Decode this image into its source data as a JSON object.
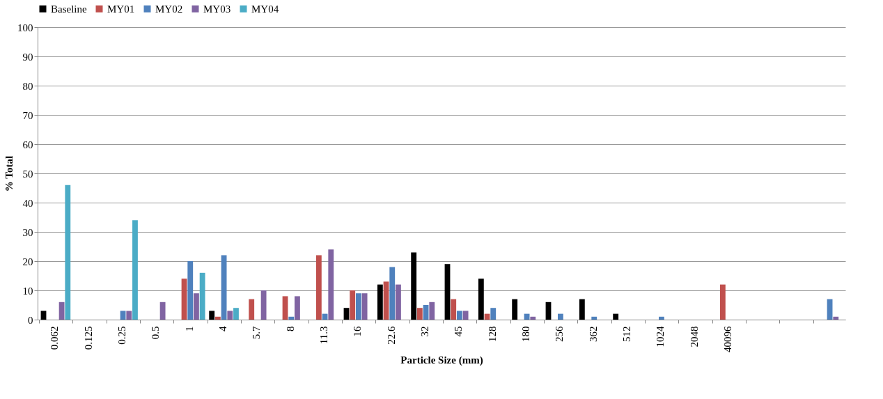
{
  "chart_data": {
    "type": "bar",
    "xlabel": "Particle Size (mm)",
    "ylabel": "% Total",
    "categories": [
      "0.062",
      "0.125",
      "0.25",
      "0.5",
      "1",
      "4",
      "5.7",
      "8",
      "11.3",
      "16",
      "22.6",
      "32",
      "45",
      "128",
      "180",
      "256",
      "362",
      "512",
      "1024",
      "2048",
      "40096",
      null,
      null,
      null
    ],
    "series": [
      {
        "name": "Baseline",
        "color": "#000000",
        "values": [
          3,
          null,
          null,
          null,
          null,
          3,
          null,
          null,
          null,
          4,
          12,
          23,
          19,
          14,
          7,
          6,
          7,
          2,
          null,
          null,
          null,
          null,
          null,
          null
        ]
      },
      {
        "name": "MY01",
        "color": "#c0504d",
        "values": [
          null,
          null,
          null,
          null,
          14,
          1,
          7,
          8,
          22,
          10,
          13,
          4,
          7,
          2,
          null,
          null,
          null,
          null,
          null,
          null,
          12,
          null,
          null,
          null
        ]
      },
      {
        "name": "MY02",
        "color": "#4f81bd",
        "values": [
          null,
          null,
          3,
          null,
          20,
          22,
          null,
          1,
          2,
          9,
          18,
          5,
          3,
          4,
          2,
          2,
          1,
          null,
          1,
          null,
          null,
          null,
          null,
          7
        ]
      },
      {
        "name": "MY03",
        "color": "#8064a2",
        "values": [
          6,
          null,
          3,
          6,
          9,
          3,
          10,
          8,
          24,
          9,
          12,
          6,
          3,
          null,
          1,
          null,
          null,
          null,
          null,
          null,
          null,
          null,
          null,
          1
        ]
      },
      {
        "name": "MY04",
        "color": "#4bacc6",
        "values": [
          46,
          null,
          34,
          null,
          16,
          4,
          null,
          null,
          null,
          null,
          null,
          null,
          null,
          null,
          null,
          null,
          null,
          null,
          null,
          null,
          null,
          null,
          null,
          null
        ]
      }
    ],
    "ylim": [
      0,
      100
    ],
    "yticks": [
      0,
      10,
      20,
      30,
      40,
      50,
      60,
      70,
      80,
      90,
      100
    ],
    "grid": "y",
    "legend": "top"
  }
}
